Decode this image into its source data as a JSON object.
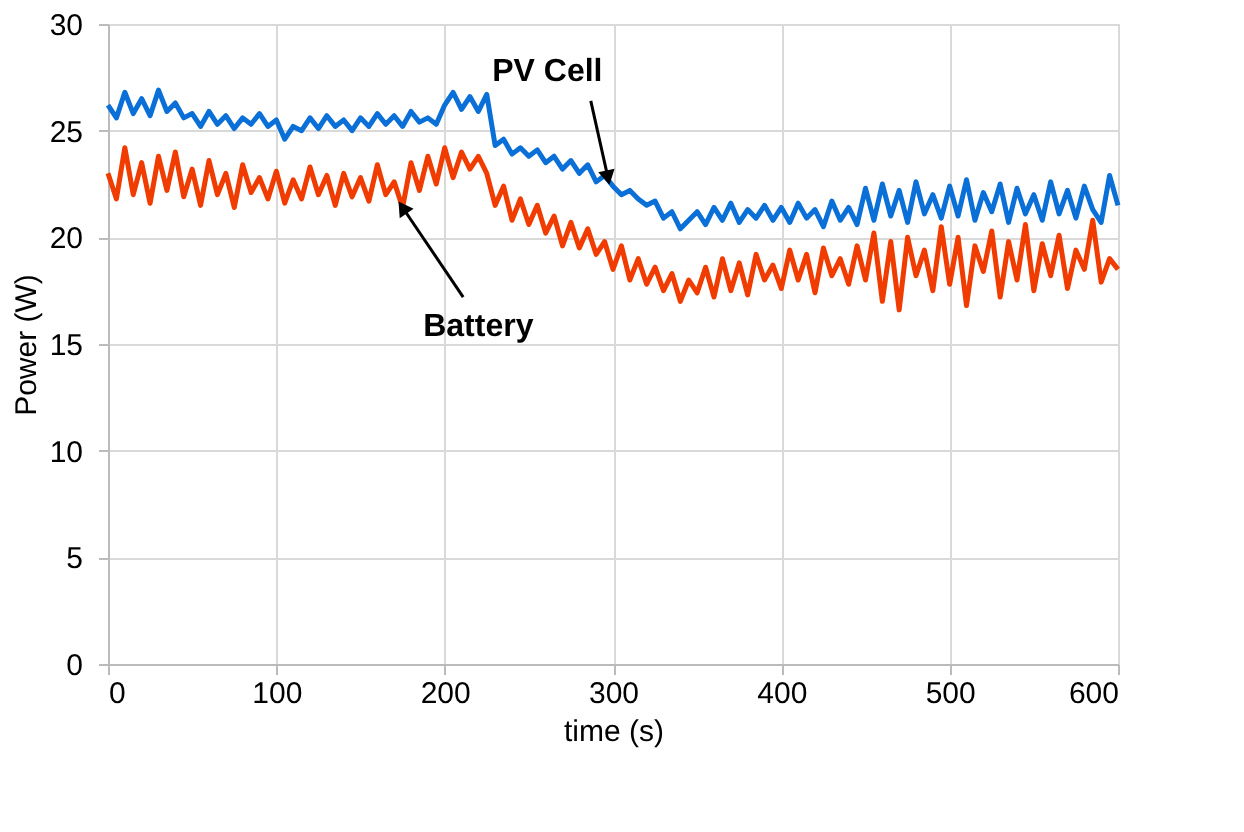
{
  "chart_data": {
    "type": "line",
    "xlabel": "time (s)",
    "ylabel": "Power (W)",
    "x": [
      0,
      5,
      10,
      15,
      20,
      25,
      30,
      35,
      40,
      45,
      50,
      55,
      60,
      65,
      70,
      75,
      80,
      85,
      90,
      95,
      100,
      105,
      110,
      115,
      120,
      125,
      130,
      135,
      140,
      145,
      150,
      155,
      160,
      165,
      170,
      175,
      180,
      185,
      190,
      195,
      200,
      205,
      210,
      215,
      220,
      225,
      230,
      235,
      240,
      245,
      250,
      255,
      260,
      265,
      270,
      275,
      280,
      285,
      290,
      295,
      300,
      305,
      310,
      315,
      320,
      325,
      330,
      335,
      340,
      345,
      350,
      355,
      360,
      365,
      370,
      375,
      380,
      385,
      390,
      395,
      400,
      405,
      410,
      415,
      420,
      425,
      430,
      435,
      440,
      445,
      450,
      455,
      460,
      465,
      470,
      475,
      480,
      485,
      490,
      495,
      500,
      505,
      510,
      515,
      520,
      525,
      530,
      535,
      540,
      545,
      550,
      555,
      560,
      565,
      570,
      575,
      580,
      585,
      590,
      595,
      600
    ],
    "series": [
      {
        "color": "#0a6fd6",
        "values": [
          26.2,
          25.6,
          26.8,
          25.8,
          26.5,
          25.7,
          26.9,
          25.9,
          26.3,
          25.6,
          25.8,
          25.2,
          25.9,
          25.3,
          25.7,
          25.1,
          25.6,
          25.3,
          25.8,
          25.2,
          25.5,
          24.6,
          25.2,
          25.0,
          25.6,
          25.1,
          25.7,
          25.2,
          25.5,
          25.0,
          25.6,
          25.2,
          25.8,
          25.3,
          25.7,
          25.2,
          25.9,
          25.4,
          25.6,
          25.3,
          26.2,
          26.8,
          26.0,
          26.6,
          25.9,
          26.7,
          24.3,
          24.6,
          23.9,
          24.2,
          23.8,
          24.1,
          23.5,
          23.8,
          23.2,
          23.6,
          23.0,
          23.4,
          22.6,
          22.9,
          22.4,
          22.0,
          22.2,
          21.8,
          21.5,
          21.7,
          20.9,
          21.2,
          20.4,
          20.8,
          21.2,
          20.6,
          21.4,
          20.8,
          21.6,
          20.7,
          21.3,
          20.9,
          21.5,
          20.8,
          21.4,
          20.7,
          21.6,
          20.9,
          21.3,
          20.5,
          21.7,
          20.8,
          21.4,
          20.6,
          22.3,
          20.8,
          22.5,
          21.0,
          22.2,
          20.7,
          22.6,
          21.1,
          22.0,
          20.9,
          22.4,
          21.0,
          22.7,
          20.8,
          22.1,
          21.2,
          22.5,
          20.7,
          22.3,
          21.1,
          22.0,
          20.8,
          22.6,
          21.1,
          22.2,
          20.9,
          22.4,
          21.3,
          20.7,
          22.9,
          21.5
        ]
      },
      {
        "color": "#f03c00",
        "values": [
          23.0,
          21.8,
          24.2,
          22.0,
          23.5,
          21.6,
          23.8,
          22.2,
          24.0,
          21.9,
          23.2,
          21.5,
          23.6,
          22.0,
          23.0,
          21.4,
          23.4,
          22.1,
          22.8,
          21.8,
          23.1,
          21.6,
          22.7,
          21.8,
          23.3,
          22.0,
          22.9,
          21.5,
          23.0,
          21.9,
          22.8,
          21.7,
          23.4,
          22.0,
          22.6,
          21.4,
          23.5,
          22.2,
          23.8,
          22.5,
          24.2,
          22.8,
          24.0,
          23.2,
          23.8,
          23.0,
          21.5,
          22.4,
          20.8,
          21.8,
          20.6,
          21.5,
          20.2,
          21.0,
          19.6,
          20.7,
          19.5,
          20.4,
          19.2,
          19.8,
          18.5,
          19.6,
          18.0,
          19.0,
          17.8,
          18.6,
          17.5,
          18.3,
          17.0,
          18.0,
          17.4,
          18.6,
          17.2,
          19.0,
          17.5,
          18.8,
          17.3,
          19.2,
          18.0,
          18.7,
          17.6,
          19.4,
          18.0,
          19.2,
          17.4,
          19.5,
          18.2,
          19.0,
          17.8,
          19.6,
          18.0,
          20.2,
          17.0,
          19.8,
          16.6,
          20.0,
          18.2,
          19.4,
          17.5,
          20.5,
          17.8,
          20.0,
          16.8,
          19.6,
          18.4,
          20.3,
          17.2,
          19.8,
          18.0,
          20.6,
          17.5,
          19.7,
          18.2,
          20.1,
          17.6,
          19.4,
          18.5,
          20.8,
          17.9,
          19.0,
          18.5
        ]
      }
    ],
    "annotations": [
      {
        "text": "PV Cell",
        "x": 297,
        "y": 22.8
      },
      {
        "text": "Battery",
        "x": 175,
        "y": 21.4
      }
    ],
    "xlim": [
      0,
      600
    ],
    "xticks": [
      0,
      100,
      200,
      300,
      400,
      500,
      600
    ],
    "ylim": [
      0,
      30
    ],
    "yticks": [
      0,
      5,
      10,
      15,
      20,
      25,
      30
    ],
    "grid": true,
    "legend": false,
    "marker": "none",
    "line_style": "solid"
  }
}
